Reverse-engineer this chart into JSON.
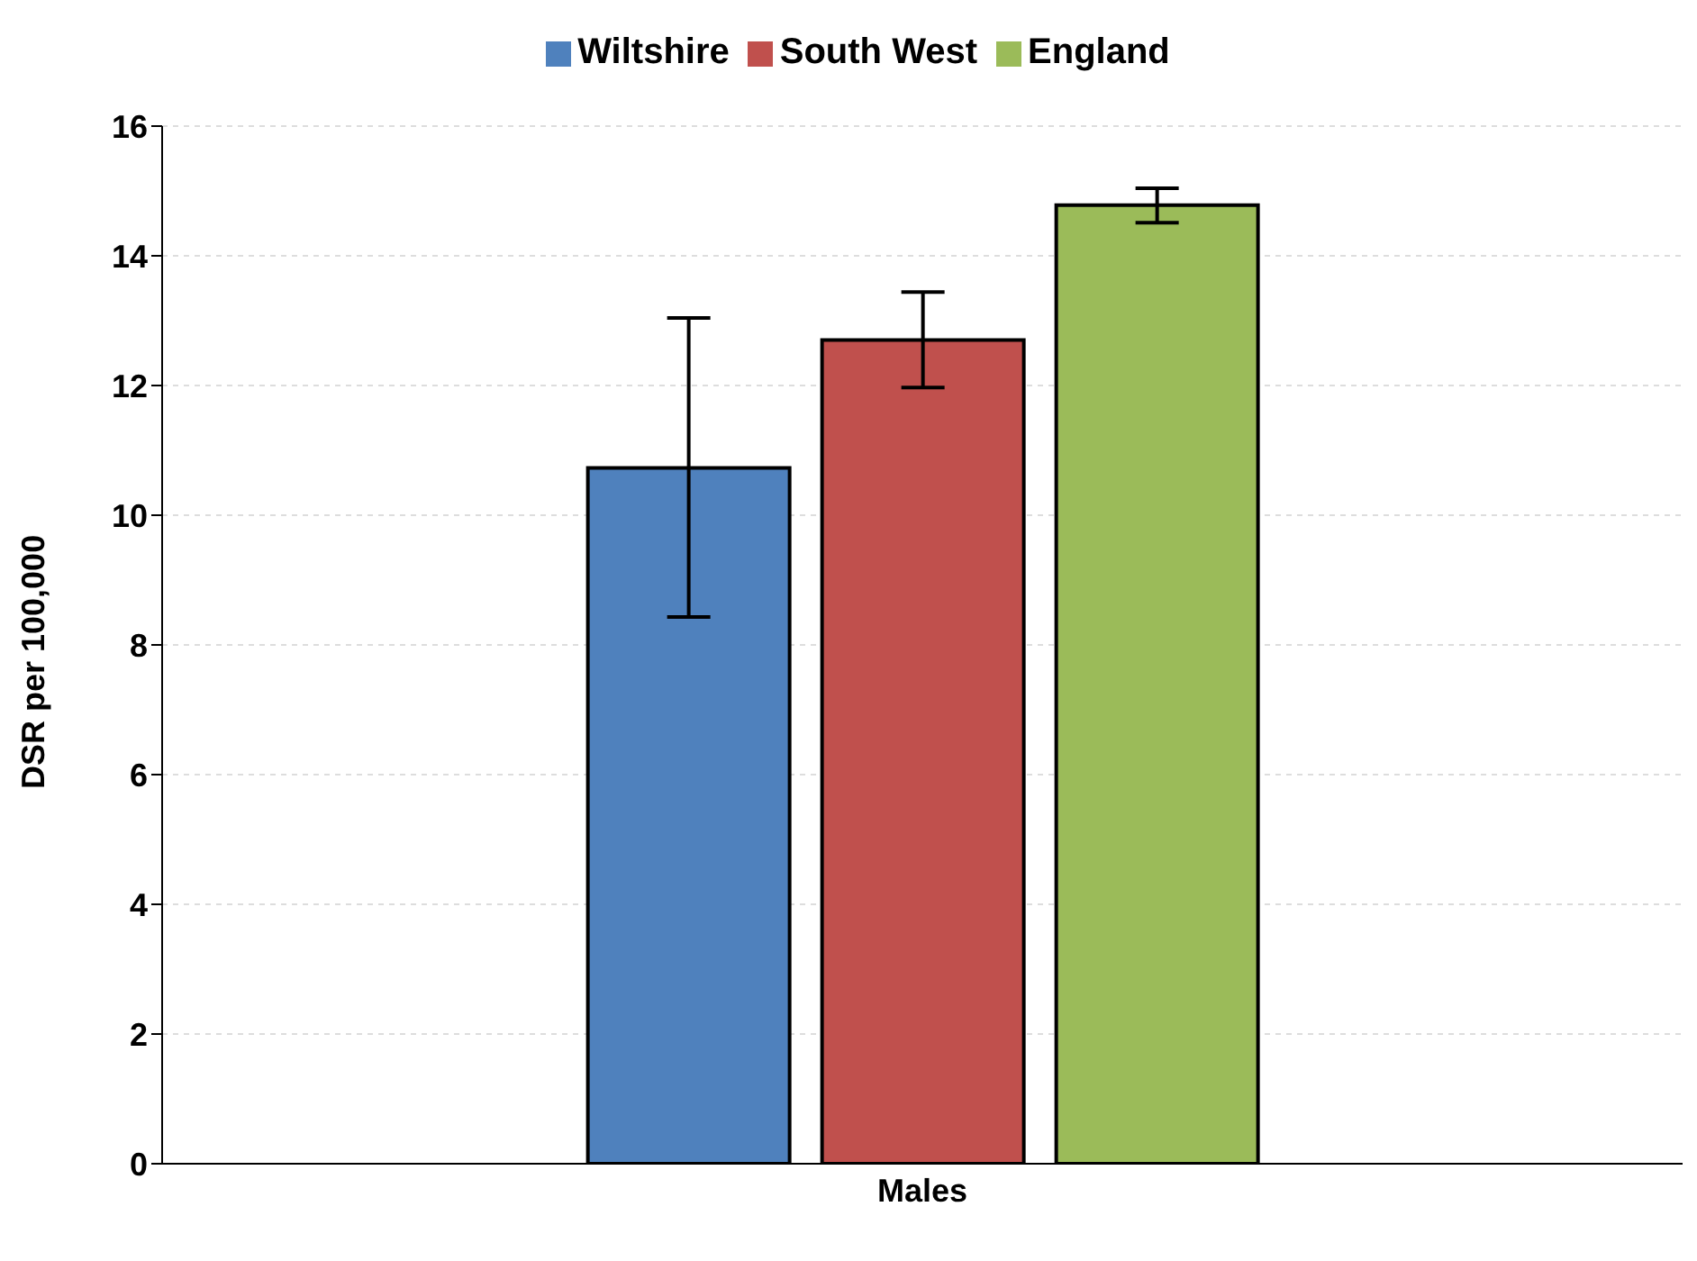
{
  "chart_data": {
    "type": "bar",
    "ylabel": "DSR per 100,000",
    "categories": [
      "Males"
    ],
    "series": [
      {
        "name": "Wiltshire",
        "color": "#4f81bd",
        "values": [
          10.73
        ],
        "errors": [
          [
            8.43,
            13.04
          ]
        ]
      },
      {
        "name": "South West",
        "color": "#c0504d",
        "values": [
          12.7
        ],
        "errors": [
          [
            11.97,
            13.44
          ]
        ]
      },
      {
        "name": "England",
        "color": "#9bbb59",
        "values": [
          14.78
        ],
        "errors": [
          [
            14.51,
            15.04
          ]
        ]
      }
    ],
    "ylim": [
      0,
      16
    ],
    "yticks": [
      0,
      2,
      4,
      6,
      8,
      10,
      12,
      14,
      16
    ],
    "grid": "y",
    "legend": "top"
  }
}
